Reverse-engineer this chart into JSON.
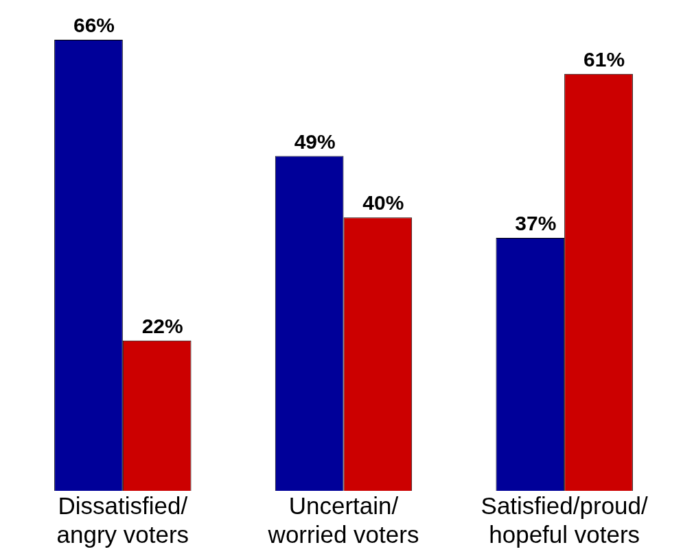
{
  "chart_data": {
    "type": "bar",
    "categories": [
      "Dissatisfied/\nangry voters",
      "Uncertain/\nworried voters",
      "Satisfied/proud/\nhopeful voters"
    ],
    "series": [
      {
        "color": "#000099",
        "values": [
          66,
          49,
          37
        ],
        "value_labels": [
          "66%",
          "49%",
          "37%"
        ]
      },
      {
        "color": "#cc0000",
        "values": [
          22,
          40,
          61
        ],
        "value_labels": [
          "22%",
          "40%",
          "61%"
        ]
      }
    ],
    "tick_labels": "x",
    "grid": false,
    "legend": false
  }
}
